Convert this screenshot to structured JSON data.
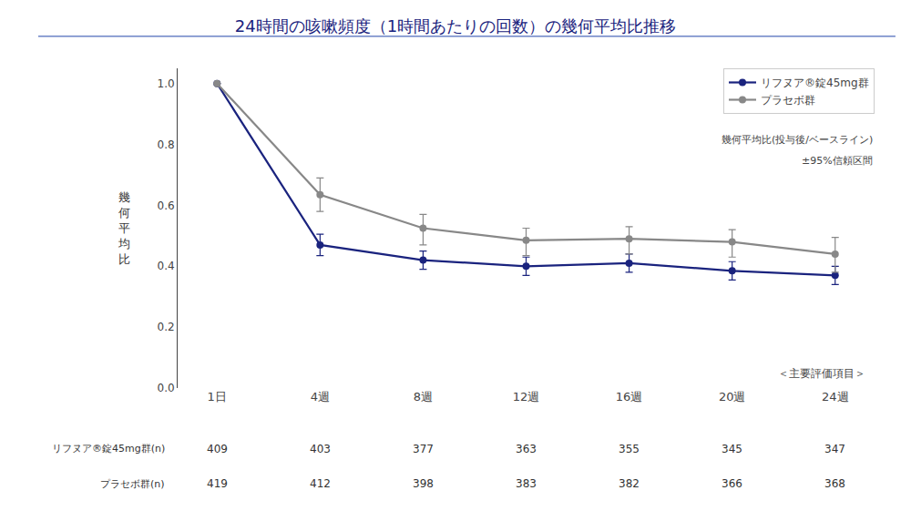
{
  "chart_data": {
    "type": "line",
    "title": "24時間の咳嗽頻度（1時間あたりの回数）の幾何平均比推移",
    "ylabel": "幾\n何\n平\n均\n比",
    "categories": [
      "1日",
      "4週",
      "8週",
      "12週",
      "16週",
      "20週",
      "24週"
    ],
    "series": [
      {
        "name": "リフヌア®錠45mg群",
        "color": "#1a237e",
        "marker": "circle",
        "values": [
          1.0,
          0.47,
          0.42,
          0.4,
          0.41,
          0.385,
          0.37
        ],
        "err_low": [
          0.0,
          0.035,
          0.03,
          0.03,
          0.03,
          0.03,
          0.03
        ],
        "err_high": [
          0.0,
          0.035,
          0.03,
          0.03,
          0.03,
          0.03,
          0.03
        ]
      },
      {
        "name": "プラセボ群",
        "color": "#888888",
        "marker": "circle",
        "values": [
          1.0,
          0.635,
          0.525,
          0.485,
          0.49,
          0.48,
          0.44
        ],
        "err_low": [
          0.0,
          0.055,
          0.055,
          0.05,
          0.05,
          0.05,
          0.06
        ],
        "err_high": [
          0.0,
          0.055,
          0.045,
          0.04,
          0.04,
          0.04,
          0.055
        ]
      }
    ],
    "ylim": [
      0.0,
      1.05
    ],
    "yticks": [
      {
        "value": 0.0,
        "label": "0.0"
      },
      {
        "value": 0.2,
        "label": "0.2"
      },
      {
        "value": 0.4,
        "label": "0.4"
      },
      {
        "value": 0.6,
        "label": "0.6"
      },
      {
        "value": 0.8,
        "label": "0.8"
      },
      {
        "value": 1.0,
        "label": "1.0"
      }
    ],
    "grid": false,
    "legend": "upper right",
    "annotation": "＜主要評価項目＞",
    "legend_note": [
      "幾何平均比(投与後/ベースライン)",
      "±95%信頼区間"
    ],
    "n_table": [
      {
        "label": "リフヌア®錠45mg群(n)",
        "values": [
          409,
          403,
          377,
          363,
          355,
          345,
          347
        ]
      },
      {
        "label": "プラセボ群(n)",
        "values": [
          419,
          412,
          398,
          383,
          382,
          366,
          368
        ]
      }
    ]
  }
}
